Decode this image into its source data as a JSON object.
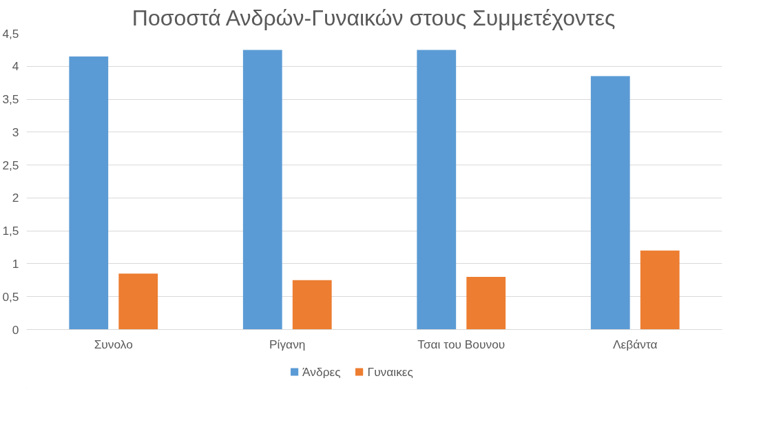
{
  "chart_data": {
    "type": "bar",
    "title": "Ποσοστά Ανδρών-Γυναικών στους Συμμετέχοντες",
    "categories": [
      "Συνολο",
      "Ρίγανη",
      "Τσαι του Βουνου",
      "Λεβάντα"
    ],
    "series": [
      {
        "name": "Άνδρες",
        "color": "#5b9bd5",
        "values": [
          4.15,
          4.25,
          4.25,
          3.85
        ]
      },
      {
        "name": "Γυναικες",
        "color": "#ed7d31",
        "values": [
          0.85,
          0.75,
          0.8,
          1.2
        ]
      }
    ],
    "ylim": [
      0,
      4.5
    ],
    "yticks": [
      0,
      {
        "value": 0.5,
        "label": "0,5"
      },
      1,
      {
        "value": 1.5,
        "label": "1,5"
      },
      2,
      {
        "value": 2.5,
        "label": "2,5"
      },
      3,
      {
        "value": 3.5,
        "label": "3,5"
      },
      4,
      {
        "value": 4.5,
        "label": "4,5"
      }
    ],
    "grid": "y",
    "legend": "bottom"
  }
}
